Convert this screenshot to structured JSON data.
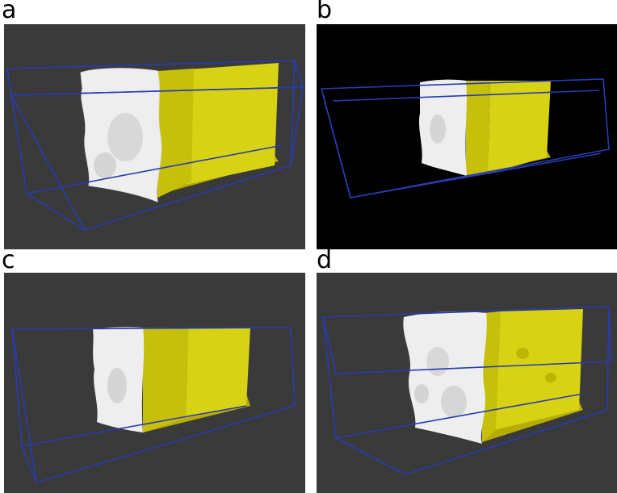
{
  "figure": {
    "panels": [
      {
        "label": "a",
        "background": "#3a3a3a"
      },
      {
        "label": "b",
        "background": "#000000"
      },
      {
        "label": "c",
        "background": "#3a3a3a"
      },
      {
        "label": "d",
        "background": "#3a3a3a"
      }
    ],
    "colors": {
      "box_edge": "#2a3bb0",
      "white_phase": "#eeeeee",
      "yellow_phase": "#d9d41c",
      "yellow_dark": "#b9b300",
      "yellow_light": "#e6e24a"
    }
  }
}
